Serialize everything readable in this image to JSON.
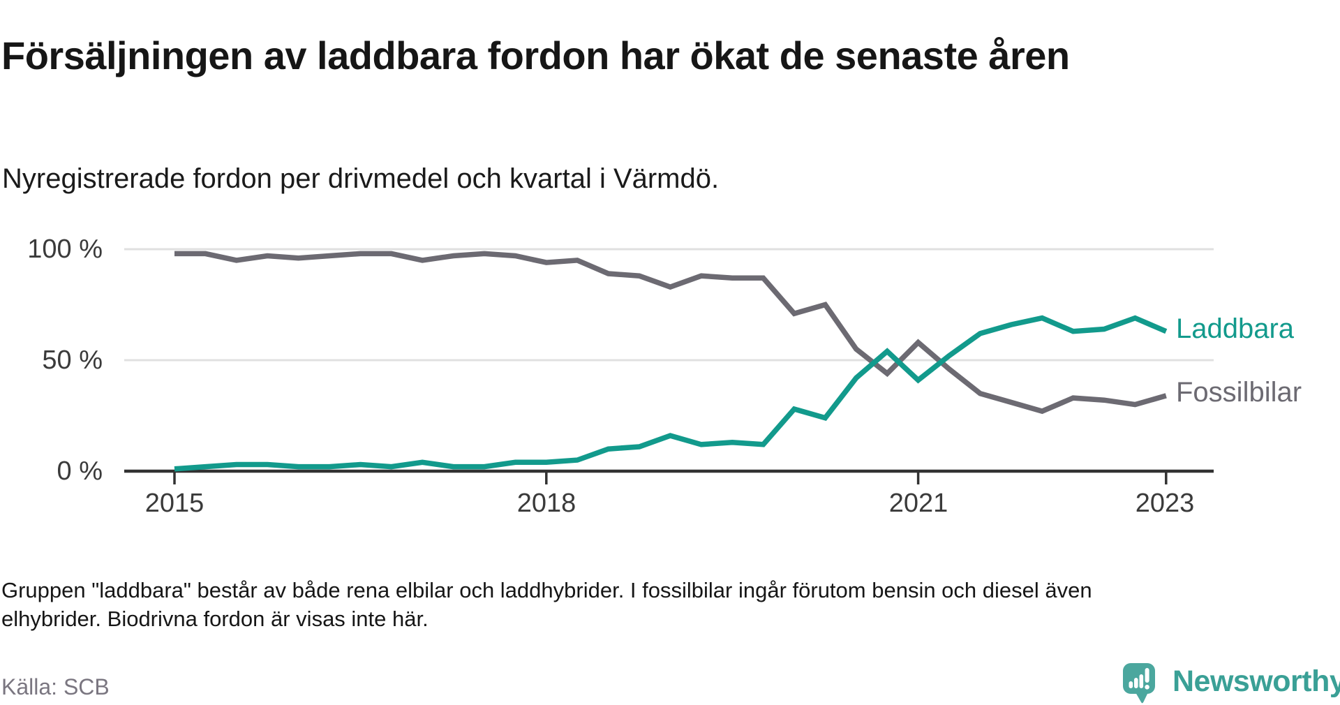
{
  "title": "Försäljningen av laddbara fordon har ökat de senaste åren",
  "subtitle": "Nyregistrerade fordon per drivmedel och kvartal i Värmdö.",
  "footnote": {
    "line1": "Gruppen \"laddbara\" består av både rena elbilar och laddhybrider. I fossilbilar ingår förutom bensin och diesel även",
    "line2": "elhybrider. Biodrivna fordon är visas inte här."
  },
  "source": "Källa: SCB",
  "branding": {
    "logo_text": "Newsworthy",
    "logo_icon": "newsworthy-speech-bubble-bar-chart-icon"
  },
  "colors": {
    "laddbara": "#129A8C",
    "fossilbilar": "#6C6A72",
    "gridline": "#e0e0e0",
    "axis": "#323232",
    "tick_label": "#3a3a3a",
    "logo_teal": "#4BA79E"
  },
  "chart_data": {
    "type": "line",
    "title": "Försäljningen av laddbara fordon har ökat de senaste åren",
    "subtitle": "Nyregistrerade fordon per drivmedel och kvartal i Värmdö.",
    "x_unit": "quarter",
    "x_start": "2015 Q1",
    "x_end": "2023 Q1",
    "ylim": [
      0,
      100
    ],
    "grid": "horizontal",
    "legend_position": "right-of-line-ends",
    "y_ticks": [
      {
        "label": "0 %",
        "value": 0
      },
      {
        "label": "50 %",
        "value": 50
      },
      {
        "label": "100 %",
        "value": 100
      }
    ],
    "x_tick_years": [
      {
        "label": "2015",
        "index": 0
      },
      {
        "label": "2018",
        "index": 12
      },
      {
        "label": "2021",
        "index": 24
      },
      {
        "label": "2023",
        "index": 32
      }
    ],
    "quarters": [
      "2015Q1",
      "2015Q2",
      "2015Q3",
      "2015Q4",
      "2016Q1",
      "2016Q2",
      "2016Q3",
      "2016Q4",
      "2017Q1",
      "2017Q2",
      "2017Q3",
      "2017Q4",
      "2018Q1",
      "2018Q2",
      "2018Q3",
      "2018Q4",
      "2019Q1",
      "2019Q2",
      "2019Q3",
      "2019Q4",
      "2020Q1",
      "2020Q2",
      "2020Q3",
      "2020Q4",
      "2021Q1",
      "2021Q2",
      "2021Q3",
      "2021Q4",
      "2022Q1",
      "2022Q2",
      "2022Q3",
      "2022Q4",
      "2023Q1"
    ],
    "series": [
      {
        "name": "Laddbara",
        "color": "#129A8C",
        "values": [
          1,
          2,
          3,
          3,
          2,
          2,
          3,
          2,
          4,
          2,
          2,
          4,
          4,
          5,
          10,
          11,
          16,
          12,
          13,
          12,
          28,
          24,
          42,
          54,
          41,
          52,
          62,
          66,
          69,
          63,
          64,
          69,
          63
        ]
      },
      {
        "name": "Fossilbilar",
        "color": "#6C6A72",
        "values": [
          98,
          98,
          95,
          97,
          96,
          97,
          98,
          98,
          95,
          97,
          98,
          97,
          94,
          95,
          89,
          88,
          83,
          88,
          87,
          87,
          71,
          75,
          55,
          44,
          58,
          46,
          35,
          31,
          27,
          33,
          32,
          30,
          34
        ]
      }
    ]
  }
}
